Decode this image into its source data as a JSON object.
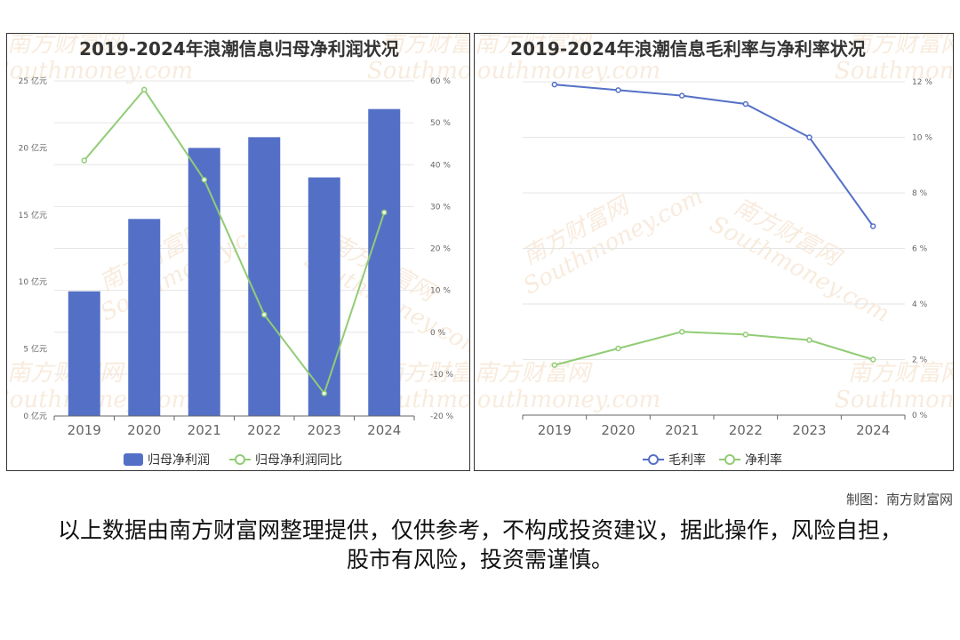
{
  "colors": {
    "bar": "#5470c6",
    "line_green": "#91cc75",
    "line_blue": "#5470c6",
    "grid": "#e6e6e6",
    "axis": "#666666"
  },
  "watermark": {
    "cn": "南方财富网",
    "en": "Southmoney.com"
  },
  "chart_data": [
    {
      "type": "bar",
      "title": "2019-2024年浪潮信息归母净利润状况",
      "categories": [
        "2019",
        "2020",
        "2021",
        "2022",
        "2023",
        "2024"
      ],
      "y_left": {
        "ticks": [
          "0 亿元",
          "5 亿元",
          "10 亿元",
          "15 亿元",
          "20 亿元",
          "25 亿元"
        ],
        "ylim": [
          0,
          25
        ]
      },
      "y_right": {
        "ticks": [
          "-20 %",
          "-10 %",
          "0 %",
          "10 %",
          "20 %",
          "30 %",
          "40 %",
          "50 %",
          "60 %"
        ],
        "ylim": [
          -20,
          60
        ]
      },
      "series": [
        {
          "name": "归母净利润",
          "type": "bar",
          "axis": "left",
          "values": [
            9.3,
            14.7,
            20.0,
            20.8,
            17.8,
            22.9
          ]
        },
        {
          "name": "归母净利润同比",
          "type": "line",
          "axis": "right",
          "values": [
            41.0,
            57.9,
            36.4,
            4.2,
            -14.6,
            28.6
          ]
        }
      ],
      "legend_position": "bottom",
      "grid": true
    },
    {
      "type": "line",
      "title": "2019-2024年浪潮信息毛利率与净利率状况",
      "categories": [
        "2019",
        "2020",
        "2021",
        "2022",
        "2023",
        "2024"
      ],
      "y_right": {
        "ticks": [
          "0 %",
          "2 %",
          "4 %",
          "6 %",
          "8 %",
          "10 %",
          "12 %"
        ],
        "ylim": [
          0,
          12
        ]
      },
      "series": [
        {
          "name": "毛利率",
          "type": "line",
          "values": [
            11.9,
            11.7,
            11.5,
            11.2,
            10.0,
            6.8
          ]
        },
        {
          "name": "净利率",
          "type": "line",
          "values": [
            1.8,
            2.4,
            3.0,
            2.9,
            2.7,
            2.0
          ]
        }
      ],
      "legend_position": "bottom",
      "grid": true
    }
  ],
  "footer": {
    "credit": "制图：南方财富网",
    "disclaimer": "以上数据由南方财富网整理提供，仅供参考，不构成投资建议，据此操作，风险自担，股市有风险，投资需谨慎。"
  }
}
